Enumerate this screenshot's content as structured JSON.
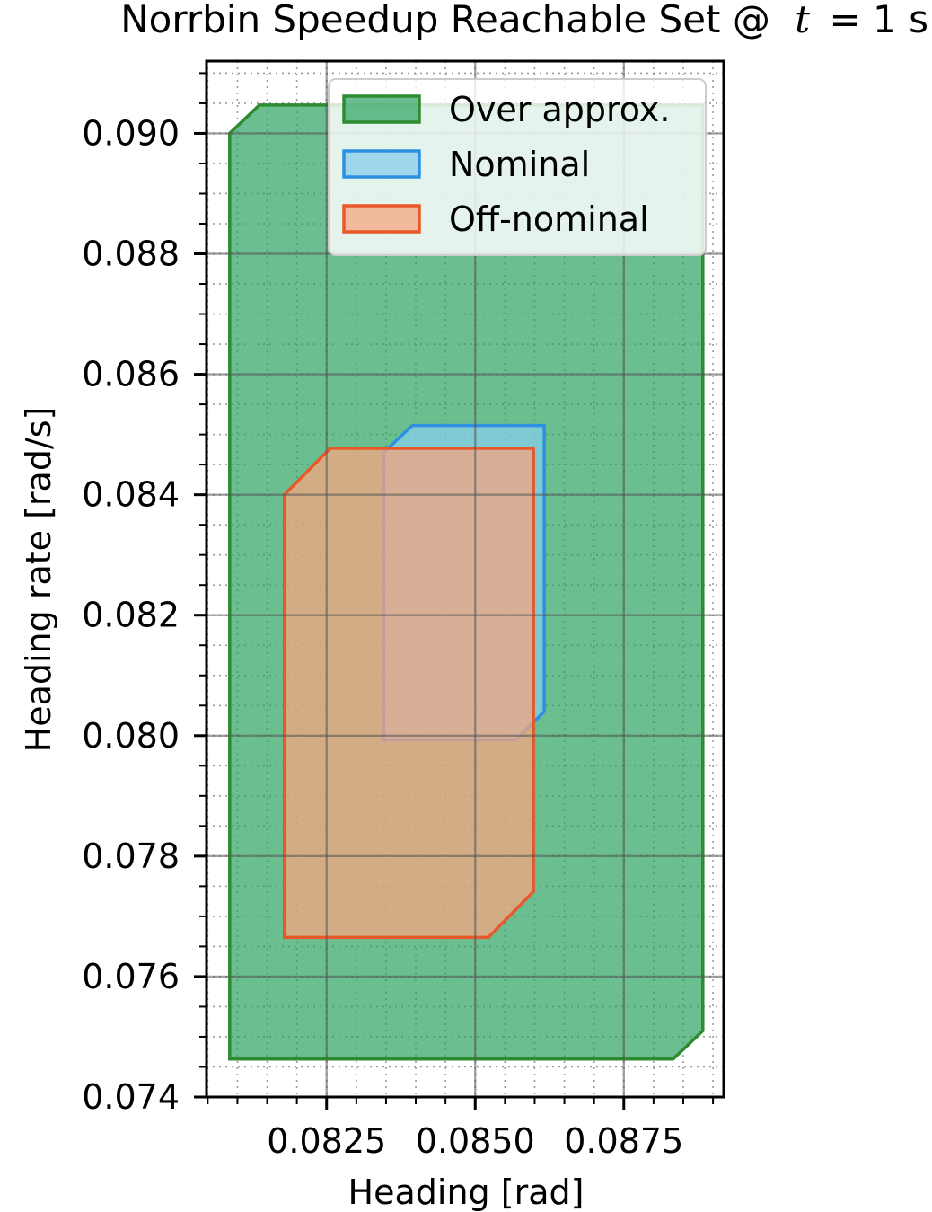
{
  "chart_data": {
    "type": "area",
    "title_prefix": "Norrbin Speedup Reachable Set @",
    "title_var": "t",
    "title_suffix": "= 1 s",
    "xlabel": "Heading [rad]",
    "ylabel": "Heading rate [rad/s]",
    "xlim": [
      0.08048,
      0.08918
    ],
    "ylim": [
      0.074,
      0.0912
    ],
    "xticks": [
      0.0825,
      0.085,
      0.0875
    ],
    "xtick_labels": [
      "0.0825",
      "0.0850",
      "0.0875"
    ],
    "yticks": [
      0.074,
      0.076,
      0.078,
      0.08,
      0.082,
      0.084,
      0.086,
      0.088,
      0.09
    ],
    "ytick_labels": [
      "0.074",
      "0.076",
      "0.078",
      "0.080",
      "0.082",
      "0.084",
      "0.086",
      "0.088",
      "0.090"
    ],
    "grid": true,
    "minor_grid": true,
    "legend_position": "top-right",
    "series": [
      {
        "name": "Over approx.",
        "color_fill": "#2ca25f",
        "color_edge": "#2e8b30",
        "polygon": [
          [
            0.08087,
            0.09
          ],
          [
            0.08137,
            0.09047
          ],
          [
            0.08883,
            0.09047
          ],
          [
            0.08883,
            0.0751
          ],
          [
            0.08833,
            0.07463
          ],
          [
            0.08087,
            0.07463
          ]
        ]
      },
      {
        "name": "Nominal",
        "color_fill": "#87ceeb",
        "color_edge": "#2e90e0",
        "polygon": [
          [
            0.08346,
            0.0847
          ],
          [
            0.08394,
            0.08515
          ],
          [
            0.08616,
            0.08515
          ],
          [
            0.08616,
            0.0804
          ],
          [
            0.08568,
            0.07993
          ],
          [
            0.08346,
            0.07993
          ]
        ]
      },
      {
        "name": "Off-nominal",
        "color_fill": "#f4a582",
        "color_edge": "#e8582a",
        "polygon": [
          [
            0.08179,
            0.084
          ],
          [
            0.08256,
            0.08477
          ],
          [
            0.08598,
            0.08477
          ],
          [
            0.08598,
            0.07741
          ],
          [
            0.08522,
            0.07665
          ],
          [
            0.08179,
            0.07665
          ]
        ]
      }
    ]
  }
}
